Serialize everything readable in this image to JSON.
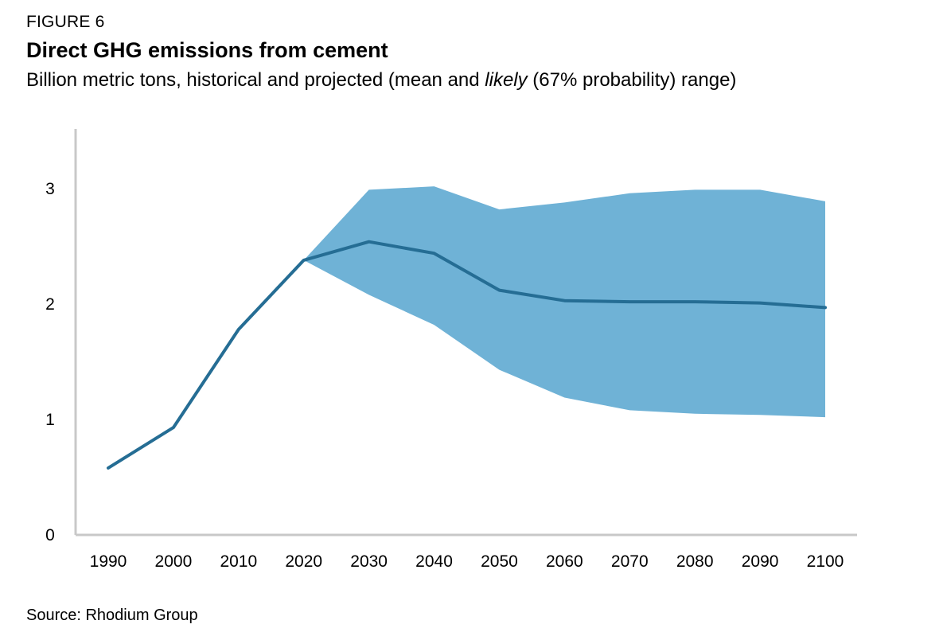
{
  "header": {
    "figure_label": "FIGURE 6",
    "title": "Direct GHG emissions from cement",
    "subtitle_before": "Billion metric tons, historical and projected (mean and ",
    "subtitle_em": "likely",
    "subtitle_after": " (67% probability) range)"
  },
  "footer": {
    "source": "Source: Rhodium Group"
  },
  "colors": {
    "line": "#256d94",
    "band": "#6fb2d6",
    "axis": "#c8c8c8"
  },
  "chart_data": {
    "type": "line",
    "title": "Direct GHG emissions from cement",
    "xlabel": "",
    "ylabel": "",
    "ylim": [
      0,
      3.5
    ],
    "grid": false,
    "y_ticks": [
      0,
      1,
      2,
      3
    ],
    "x_ticks": [
      1990,
      2000,
      2010,
      2020,
      2030,
      2040,
      2050,
      2060,
      2070,
      2080,
      2090,
      2100
    ],
    "series": [
      {
        "x": [
          1990,
          2000,
          2010,
          2020,
          2030,
          2040,
          2050,
          2060,
          2070,
          2080,
          2090,
          2100
        ],
        "values": [
          0.58,
          0.93,
          1.78,
          2.38,
          2.54,
          2.44,
          2.12,
          2.03,
          2.02,
          2.02,
          2.01,
          1.97
        ]
      }
    ],
    "range": {
      "x": [
        2020,
        2030,
        2040,
        2050,
        2060,
        2070,
        2080,
        2090,
        2100
      ],
      "lower": [
        2.38,
        2.08,
        1.82,
        1.43,
        1.19,
        1.08,
        1.05,
        1.04,
        1.02
      ],
      "upper": [
        2.38,
        2.99,
        3.02,
        2.82,
        2.88,
        2.96,
        2.99,
        2.99,
        2.89
      ]
    }
  }
}
